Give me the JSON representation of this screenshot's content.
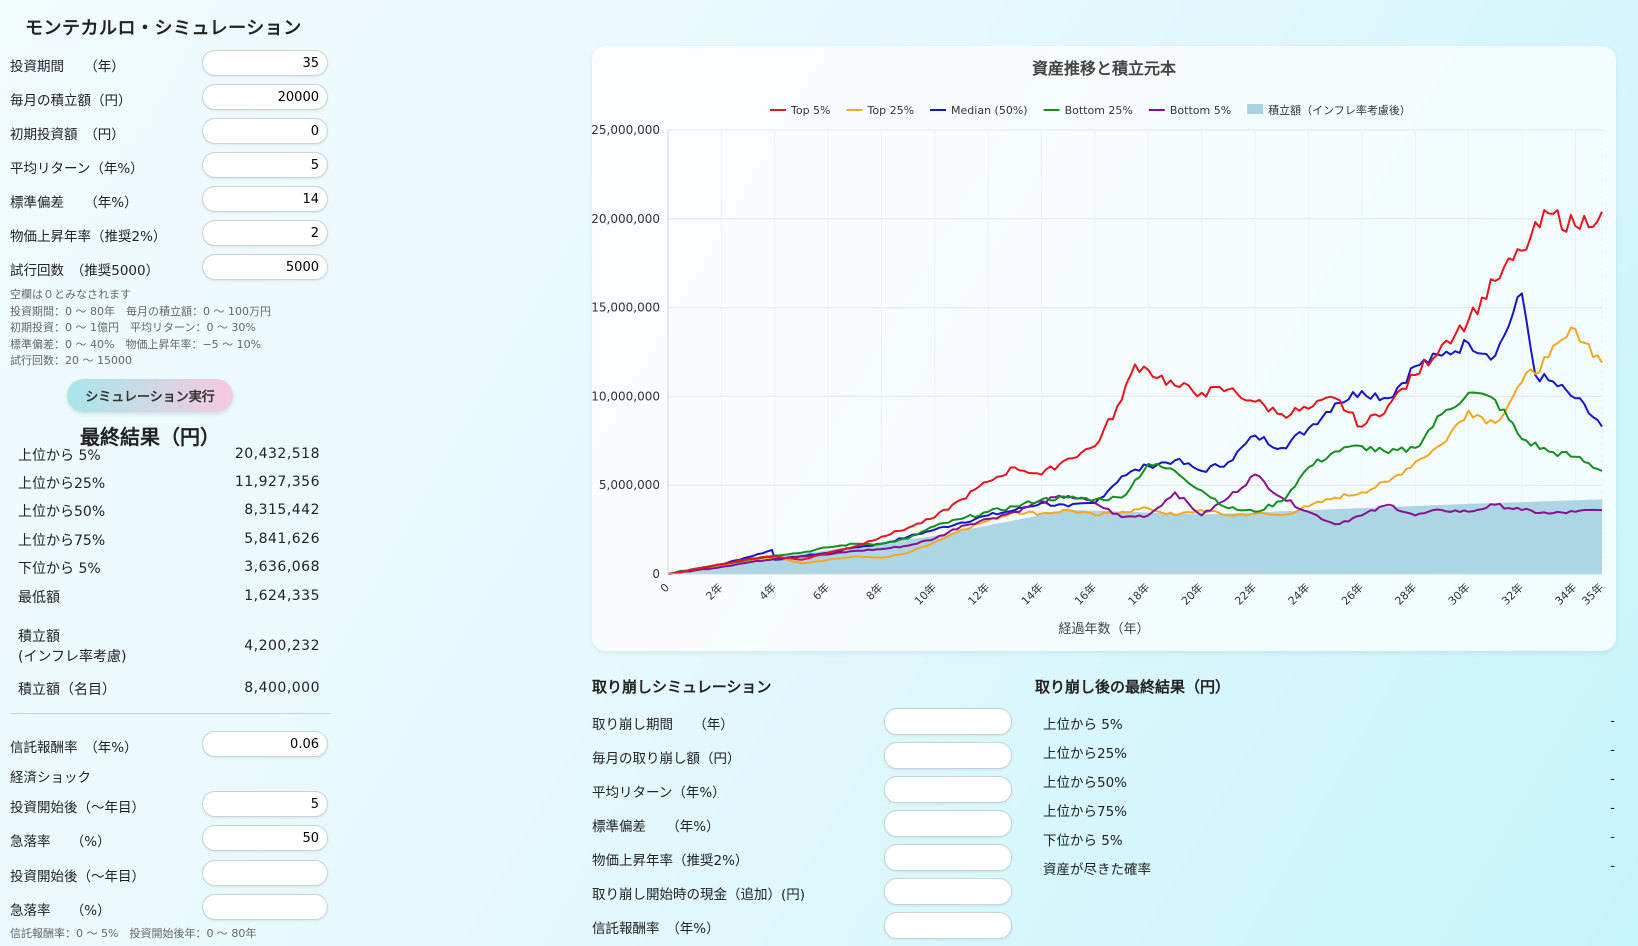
{
  "app_title": "モンテカルロ・シミュレーション",
  "inputs": [
    {
      "label": "投資期間　　（年）",
      "value": "35"
    },
    {
      "label": "毎月の積立額（円）",
      "value": "20000"
    },
    {
      "label": "初期投資額　（円）",
      "value": "0"
    },
    {
      "label": "平均リターン（年%）",
      "value": "5"
    },
    {
      "label": "標準偏差　　（年%）",
      "value": "14"
    },
    {
      "label": "物価上昇年率（推奨2%）",
      "value": "2"
    },
    {
      "label": "試行回数　（推奨5000）",
      "value": "5000"
    }
  ],
  "hints": "空欄は０とみなされます\n投資期間：0 ～ 80年　毎月の積立額：0 ～ 100万円\n初期投資：0 ～ 1億円　平均リターン：0 ～ 30%\n標準偏差：0 ～ 40%　物価上昇年率：−5 ～ 10%\n試行回数：20 ～ 15000",
  "run_button": "シミュレーション実行",
  "results_title": "最終結果（円）",
  "results": [
    {
      "label": "上位から 5%",
      "value": "20,432,518"
    },
    {
      "label": "上位から25%",
      "value": "11,927,356"
    },
    {
      "label": "上位から50%",
      "value": "8,315,442"
    },
    {
      "label": "上位から75%",
      "value": "5,841,626"
    },
    {
      "label": "下位から 5%",
      "value": "3,636,068"
    },
    {
      "label": "最低額",
      "value": "1,624,335"
    },
    {
      "label": "積立額\n(インフレ率考慮)",
      "value": "4,200,232"
    },
    {
      "label": "積立額（名目）",
      "value": "8,400,000"
    }
  ],
  "fee": {
    "label": "信託報酬率　（年%）",
    "value": "0.06"
  },
  "shock_title": "経済ショック",
  "shocks": [
    {
      "start_label": "投資開始後（～年目）",
      "start_value": "5",
      "drop_label": "急落率　　（%）",
      "drop_value": "50"
    },
    {
      "start_label": "投資開始後（～年目）",
      "start_value": "",
      "drop_label": "急落率　　（%）",
      "drop_value": ""
    }
  ],
  "bottom_hint": "信託報酬率：0 ～ 5%　投資開始後年：0 ～ 80年",
  "colors": {
    "top5": "#e8141e",
    "top25": "#f5a623",
    "median": "#1616c8",
    "bottom25": "#14901e",
    "bottom5": "#8a1090",
    "principal": "#a8d4e2"
  },
  "chart_data": {
    "type": "line",
    "title": "資産推移と積立元本",
    "xlabel": "経過年数（年）",
    "ylabel": "",
    "xlim": [
      0,
      35
    ],
    "ylim": [
      0,
      25000000
    ],
    "y_ticks": [
      "0",
      "5,000,000",
      "10,000,000",
      "15,000,000",
      "20,000,000",
      "25,000,000"
    ],
    "x_ticks": [
      "0",
      "2年",
      "4年",
      "6年",
      "8年",
      "10年",
      "12年",
      "14年",
      "16年",
      "18年",
      "20年",
      "22年",
      "24年",
      "26年",
      "28年",
      "30年",
      "32年",
      "34年",
      "35年"
    ],
    "grid": true,
    "legend_position": "top",
    "series": [
      {
        "name": "Top 5%",
        "key": "top5",
        "x": [
          0,
          1,
          2,
          3,
          4,
          5,
          6,
          7,
          8,
          9,
          10,
          11,
          12,
          13,
          14,
          15,
          16,
          17,
          17.5,
          18,
          19,
          20,
          21,
          22,
          23,
          24,
          25,
          26,
          27,
          28,
          29,
          30,
          31,
          32,
          33,
          34,
          35
        ],
        "values": [
          0,
          250000,
          550000,
          850000,
          1000000,
          800000,
          1200000,
          1550000,
          2100000,
          2600000,
          3200000,
          4200000,
          5200000,
          6000000,
          5600000,
          6500000,
          7200000,
          9800000,
          11800000,
          11500000,
          10600000,
          10200000,
          10400000,
          9700000,
          9000000,
          9300000,
          9900000,
          8300000,
          9500000,
          11200000,
          12900000,
          14300000,
          16500000,
          18200000,
          20300000,
          19600000,
          20400000
        ]
      },
      {
        "name": "Top 25%",
        "key": "top25",
        "x": [
          0,
          1,
          2,
          3,
          4,
          5,
          6,
          7,
          8,
          9,
          10,
          11,
          12,
          13,
          14,
          15,
          16,
          17,
          18,
          19,
          20,
          21,
          22,
          23,
          24,
          25,
          26,
          27,
          28,
          29,
          30,
          31,
          32,
          33,
          34,
          35
        ],
        "values": [
          0,
          250000,
          500000,
          750000,
          950000,
          600000,
          800000,
          1000000,
          900000,
          1200000,
          1800000,
          2500000,
          3000000,
          3500000,
          3400000,
          3600000,
          3300000,
          3500000,
          3700000,
          3300000,
          3600000,
          3300000,
          3400000,
          3300000,
          3800000,
          4300000,
          4600000,
          5200000,
          6300000,
          7300000,
          9200000,
          8500000,
          10800000,
          12200000,
          13800000,
          11900000
        ]
      },
      {
        "name": "Median (50%)",
        "key": "median",
        "x": [
          0,
          1,
          2,
          3,
          3.9,
          4,
          5,
          6,
          7,
          8,
          9,
          10,
          11,
          12,
          13,
          14,
          15,
          16,
          17,
          18,
          19,
          20,
          21,
          22,
          23,
          24,
          25,
          26,
          27,
          28,
          29,
          30,
          31,
          32,
          32.5,
          33,
          34,
          35
        ],
        "values": [
          0,
          250000,
          550000,
          950000,
          1350000,
          800000,
          1000000,
          1200000,
          1500000,
          1700000,
          2100000,
          2500000,
          2900000,
          3300000,
          3600000,
          4000000,
          3800000,
          4000000,
          5500000,
          6100000,
          6400000,
          5800000,
          6300000,
          7800000,
          7100000,
          8200000,
          9600000,
          10300000,
          9900000,
          11700000,
          12300000,
          13000000,
          12300000,
          15800000,
          11200000,
          10900000,
          9900000,
          8300000
        ]
      },
      {
        "name": "Bottom 25%",
        "key": "bottom25",
        "x": [
          0,
          1,
          2,
          3,
          4,
          5,
          6,
          7,
          8,
          9,
          10,
          11,
          12,
          13,
          14,
          15,
          16,
          17,
          18,
          19,
          20,
          21,
          22,
          23,
          24,
          25,
          26,
          27,
          28,
          29,
          30,
          31,
          32,
          33,
          34,
          35
        ],
        "values": [
          0,
          300000,
          550000,
          800000,
          1050000,
          1200000,
          1500000,
          1700000,
          1700000,
          2000000,
          2700000,
          3100000,
          3500000,
          3800000,
          4200000,
          4300000,
          4200000,
          4300000,
          6200000,
          5800000,
          4700000,
          3700000,
          3500000,
          4100000,
          6000000,
          6900000,
          7200000,
          6800000,
          7100000,
          9000000,
          10200000,
          9800000,
          7600000,
          6900000,
          6600000,
          5800000
        ]
      },
      {
        "name": "Bottom 5%",
        "key": "bottom5",
        "x": [
          0,
          1,
          2,
          3,
          4,
          5,
          6,
          7,
          8,
          9,
          10,
          11,
          12,
          13,
          14,
          15,
          16,
          17,
          18,
          19,
          20,
          21,
          22,
          23,
          24,
          25,
          26,
          27,
          28,
          29,
          30,
          31,
          32,
          33,
          34,
          35
        ],
        "values": [
          0,
          200000,
          400000,
          650000,
          850000,
          1000000,
          1100000,
          1300000,
          1400000,
          1600000,
          2000000,
          2700000,
          3100000,
          3500000,
          4100000,
          4400000,
          4000000,
          3200000,
          3300000,
          4600000,
          3300000,
          4300000,
          5600000,
          4300000,
          3500000,
          2800000,
          3300000,
          3900000,
          3300000,
          3600000,
          3500000,
          3900000,
          3600000,
          3400000,
          3500000,
          3600000
        ]
      },
      {
        "name": "積立額（インフレ率考慮後）",
        "key": "principal",
        "area": true,
        "x": [
          0,
          5,
          10,
          15,
          20,
          25,
          30,
          35
        ],
        "values": [
          0,
          1130000,
          2150000,
          3620000,
          3350000,
          3650000,
          3950000,
          4200000
        ]
      }
    ]
  },
  "withdraw": {
    "title": "取り崩しシミュレーション",
    "fields": [
      {
        "label": "取り崩し期間　　（年）",
        "value": ""
      },
      {
        "label": "毎月の取り崩し額（円）",
        "value": ""
      },
      {
        "label": "平均リターン（年%）",
        "value": ""
      },
      {
        "label": "標準偏差　　（年%）",
        "value": ""
      },
      {
        "label": "物価上昇年率（推奨2%）",
        "value": ""
      },
      {
        "label": "取り崩し開始時の現金（追加）(円)",
        "value": ""
      },
      {
        "label": "信託報酬率　（年%）",
        "value": ""
      }
    ]
  },
  "withdraw_results": {
    "title": "取り崩し後の最終結果（円）",
    "rows": [
      {
        "label": "上位から 5%",
        "value": "-"
      },
      {
        "label": "上位から25%",
        "value": "-"
      },
      {
        "label": "上位から50%",
        "value": "-"
      },
      {
        "label": "上位から75%",
        "value": "-"
      },
      {
        "label": "下位から 5%",
        "value": "-"
      },
      {
        "label": "資産が尽きた確率",
        "value": "-"
      }
    ]
  }
}
